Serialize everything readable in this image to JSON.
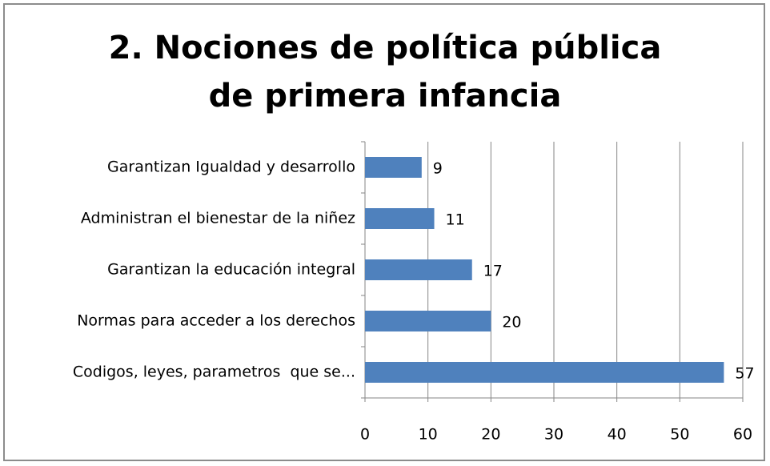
{
  "chart_data": {
    "type": "bar",
    "orientation": "horizontal",
    "title": "2. Nociones de política pública de primera infancia",
    "categories": [
      "Garantizan Igualdad y desarrollo",
      "Administran el bienestar de la niñez",
      "Garantizan la educación integral",
      "Normas para acceder a los derechos",
      "Codigos, leyes, parametros  que se..."
    ],
    "values": [
      9,
      11,
      17,
      20,
      57
    ],
    "color": "#4f81bd",
    "xlim": [
      0,
      60
    ],
    "xticks": [
      0,
      10,
      20,
      30,
      40,
      50,
      60
    ],
    "grid": true
  }
}
